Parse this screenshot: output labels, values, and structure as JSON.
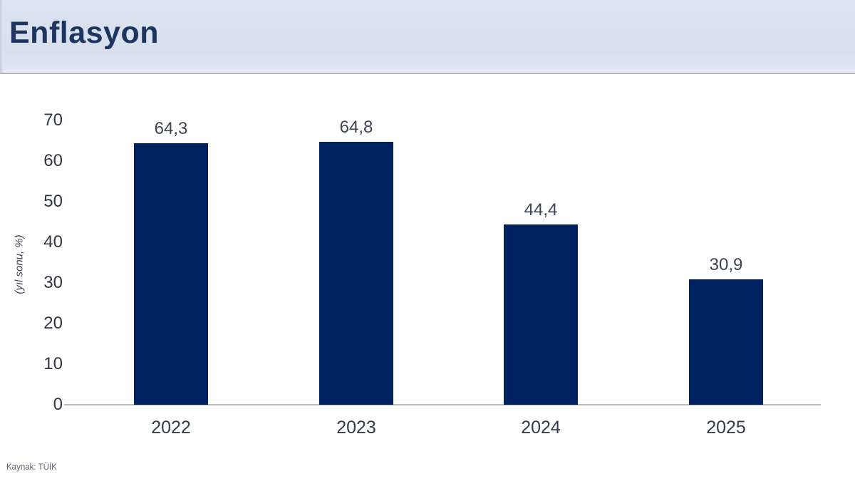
{
  "header": {
    "title": "Enflasyon"
  },
  "chart_data": {
    "type": "bar",
    "title": "Enflasyon",
    "categories": [
      "2022",
      "2023",
      "2024",
      "2025"
    ],
    "values": [
      64.3,
      64.8,
      44.4,
      30.9
    ],
    "value_labels": [
      "64,3",
      "64,8",
      "44,4",
      "30,9"
    ],
    "ylabel": "(yıl sonu, %)",
    "xlabel": "",
    "yticks": [
      0,
      10,
      20,
      30,
      40,
      50,
      60,
      70
    ],
    "ylim": [
      0,
      70
    ],
    "grid": false,
    "legend": false,
    "bar_color": "#00215f"
  },
  "footer": {
    "source": "Kaynak: TÜİK"
  },
  "colors": {
    "header_background": "#d9e1ef",
    "header_border": "#aeb4c1",
    "title_text": "#1e3560",
    "bar": "#00215f",
    "axis_line": "#b7bac1",
    "value_label_text": "#3f4453",
    "tick_text": "#31353f"
  }
}
